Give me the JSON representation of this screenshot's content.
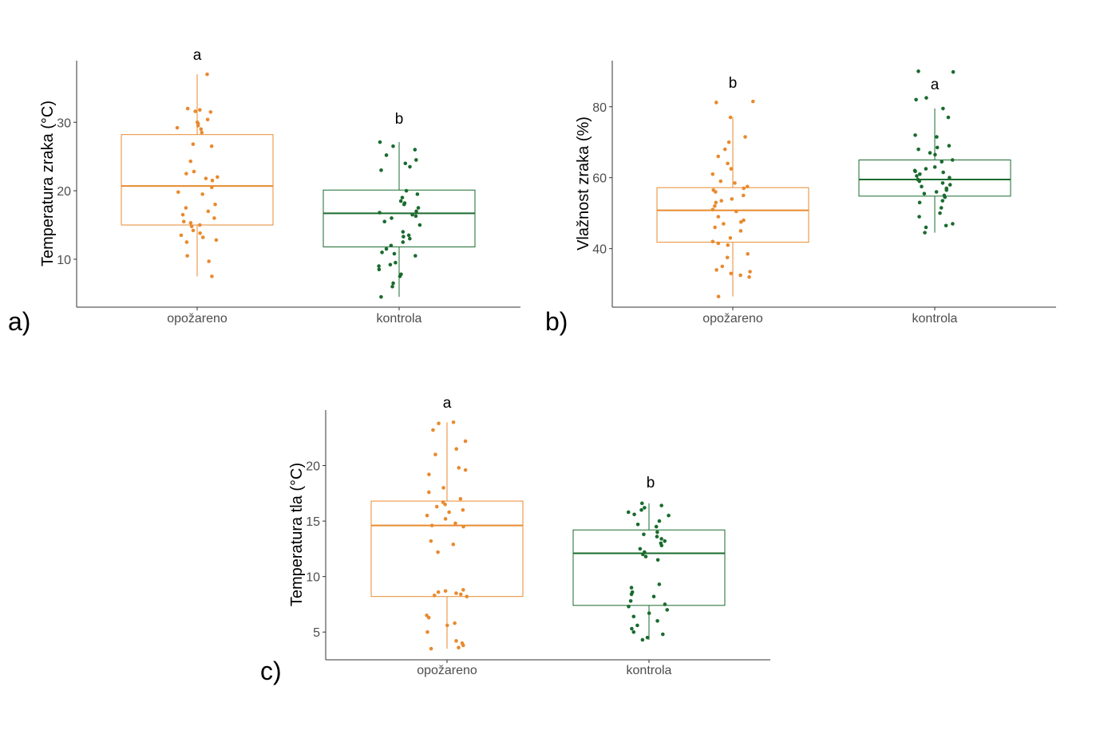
{
  "colors": {
    "burned": "#e88a2f",
    "control": "#1a6b2e",
    "axis": "#333333"
  },
  "chart_data": [
    {
      "type": "boxplot",
      "panel_label": "a)",
      "ylabel": "Temperatura zraka (°C)",
      "categories": [
        "opožareno",
        "kontrola"
      ],
      "ylim": [
        3,
        39
      ],
      "yticks": [
        10,
        20,
        30
      ],
      "series": [
        {
          "name": "opožareno",
          "color": "#e88a2f",
          "letter": "a",
          "box": {
            "whisker_low": 7.5,
            "q1": 15.0,
            "median": 20.7,
            "q3": 28.2,
            "whisker_high": 37.0
          },
          "points": [
            37.0,
            31.8,
            31.6,
            32.0,
            31.5,
            30.4,
            30.0,
            29.8,
            29.5,
            29.2,
            29.0,
            28.5,
            26.8,
            26.5,
            24.3,
            22.8,
            22.5,
            22.0,
            21.8,
            21.5,
            20.5,
            19.8,
            19.5,
            18.0,
            17.5,
            17.0,
            16.5,
            16.0,
            15.5,
            15.3,
            15.0,
            14.8,
            14.2,
            13.8,
            13.5,
            13.2,
            12.8,
            12.5,
            10.5,
            9.7,
            7.5
          ]
        },
        {
          "name": "kontrola",
          "color": "#1a6b2e",
          "letter": "b",
          "box": {
            "whisker_low": 4.5,
            "q1": 11.8,
            "median": 16.7,
            "q3": 20.1,
            "whisker_high": 27.1
          },
          "points": [
            27.1,
            26.5,
            26.0,
            25.2,
            24.5,
            24.0,
            23.5,
            23.0,
            20.0,
            19.5,
            19.0,
            18.5,
            18.2,
            18.0,
            17.5,
            17.0,
            16.8,
            16.5,
            16.3,
            16.0,
            15.5,
            15.0,
            14.0,
            13.5,
            13.3,
            13.0,
            12.5,
            12.0,
            11.5,
            11.0,
            10.8,
            10.5,
            9.5,
            9.2,
            9.0,
            8.5,
            7.8,
            7.5,
            6.5,
            6.0,
            4.5
          ]
        }
      ]
    },
    {
      "type": "boxplot",
      "panel_label": "b)",
      "ylabel": "Vlažnost zraka (%)",
      "categories": [
        "opožareno",
        "kontrola"
      ],
      "ylim": [
        23.5,
        93
      ],
      "yticks": [
        40,
        60,
        80
      ],
      "series": [
        {
          "name": "opožareno",
          "color": "#e88a2f",
          "letter": "b",
          "box": {
            "whisker_low": 26.5,
            "q1": 41.8,
            "median": 50.8,
            "q3": 57.2,
            "whisker_high": 77.0
          },
          "points": [
            81.5,
            81.2,
            77.0,
            71.5,
            70.0,
            68.0,
            66.0,
            64.0,
            62.5,
            61.0,
            59.0,
            58.5,
            57.5,
            57.0,
            56.5,
            56.0,
            55.0,
            54.0,
            53.5,
            53.0,
            52.0,
            51.0,
            50.5,
            49.0,
            48.0,
            47.5,
            47.0,
            46.0,
            45.0,
            43.0,
            42.0,
            41.5,
            41.0,
            38.5,
            37.5,
            35.0,
            34.0,
            33.5,
            33.0,
            32.5,
            32.0,
            26.5
          ]
        },
        {
          "name": "kontrola",
          "color": "#1a6b2e",
          "letter": "a",
          "box": {
            "whisker_low": 44.5,
            "q1": 54.8,
            "median": 59.5,
            "q3": 65.0,
            "whisker_high": 79.5
          },
          "points": [
            90.0,
            89.8,
            82.5,
            82.0,
            79.5,
            77.0,
            72.0,
            71.5,
            69.0,
            68.5,
            68.0,
            67.0,
            66.5,
            65.0,
            64.5,
            63.0,
            62.5,
            62.0,
            61.8,
            61.5,
            61.0,
            60.5,
            60.0,
            59.5,
            59.0,
            58.5,
            58.0,
            57.5,
            57.0,
            56.5,
            56.0,
            55.5,
            55.0,
            54.5,
            53.5,
            53.0,
            51.5,
            50.0,
            49.0,
            47.0,
            46.5,
            46.0,
            44.5
          ]
        }
      ]
    },
    {
      "type": "boxplot",
      "panel_label": "c)",
      "ylabel": "Temperatura tla (°C)",
      "categories": [
        "opožareno",
        "kontrola"
      ],
      "ylim": [
        2.5,
        25
      ],
      "yticks": [
        5,
        10,
        15,
        20
      ],
      "series": [
        {
          "name": "opožareno",
          "color": "#e88a2f",
          "letter": "a",
          "box": {
            "whisker_low": 3.5,
            "q1": 8.2,
            "median": 14.6,
            "q3": 16.8,
            "whisker_high": 23.9
          },
          "points": [
            23.9,
            23.8,
            23.2,
            22.2,
            21.5,
            21.0,
            19.8,
            19.6,
            19.2,
            18.0,
            17.6,
            17.0,
            16.7,
            16.5,
            16.3,
            16.0,
            15.8,
            15.5,
            15.2,
            14.8,
            14.6,
            14.5,
            13.2,
            12.9,
            12.2,
            8.8,
            8.7,
            8.6,
            8.5,
            8.4,
            8.3,
            8.2,
            6.5,
            6.3,
            5.8,
            5.6,
            5.0,
            4.2,
            4.0,
            3.8,
            3.6,
            3.5
          ]
        },
        {
          "name": "kontrola",
          "color": "#1a6b2e",
          "letter": "b",
          "box": {
            "whisker_low": 4.3,
            "q1": 7.4,
            "median": 12.1,
            "q3": 14.2,
            "whisker_high": 16.6
          },
          "points": [
            16.6,
            16.4,
            16.2,
            16.0,
            15.8,
            15.6,
            15.5,
            15.0,
            14.7,
            14.5,
            14.0,
            13.8,
            13.6,
            13.4,
            13.2,
            13.0,
            12.8,
            12.5,
            12.2,
            12.0,
            11.8,
            11.5,
            9.3,
            9.0,
            8.6,
            8.4,
            8.2,
            7.8,
            7.5,
            7.3,
            7.0,
            6.7,
            6.4,
            6.0,
            5.6,
            5.3,
            5.0,
            4.8,
            4.5,
            4.3
          ]
        }
      ]
    }
  ]
}
